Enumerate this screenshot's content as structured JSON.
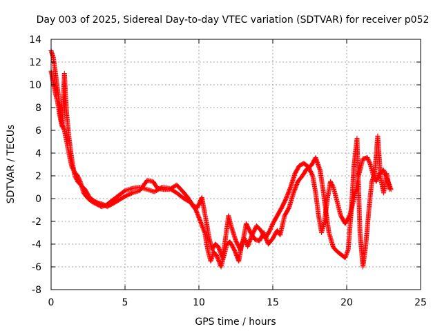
{
  "chart_data": {
    "type": "scatter",
    "title": "Day 003 of 2025, Sidereal Day-to-day VTEC variation (SDTVAR) for receiver p052",
    "xlabel": "GPS time / hours",
    "ylabel": "SDTVAR / TECUs",
    "xlim": [
      0,
      25
    ],
    "ylim": [
      -8,
      14
    ],
    "xticks": [
      0,
      5,
      10,
      15,
      20,
      25
    ],
    "yticks": [
      -8,
      -6,
      -4,
      -2,
      0,
      2,
      4,
      6,
      8,
      10,
      12,
      14
    ],
    "grid": true,
    "marker": "+",
    "color": "#ff0000",
    "series": [
      {
        "name": "SDTVAR",
        "trace_a": [
          [
            0,
            13
          ],
          [
            0.15,
            12.4
          ],
          [
            0.3,
            11
          ],
          [
            0.45,
            9.5
          ],
          [
            0.6,
            8
          ],
          [
            0.75,
            6.5
          ],
          [
            0.9,
            6
          ],
          [
            1.05,
            5
          ],
          [
            1.2,
            4
          ],
          [
            1.4,
            2.8
          ],
          [
            1.6,
            2.3
          ],
          [
            1.8,
            2
          ],
          [
            2,
            1.4
          ],
          [
            2.2,
            0.5
          ],
          [
            2.5,
            0
          ],
          [
            2.8,
            -0.3
          ],
          [
            3.1,
            -0.5
          ],
          [
            3.4,
            -0.7
          ],
          [
            3.7,
            -0.6
          ],
          [
            4,
            -0.3
          ],
          [
            4.3,
            0
          ],
          [
            4.6,
            0.3
          ],
          [
            5,
            0.7
          ],
          [
            5.5,
            0.9
          ],
          [
            6,
            1
          ],
          [
            6.5,
            0.8
          ],
          [
            7,
            0.6
          ],
          [
            7.5,
            1
          ],
          [
            8,
            0.9
          ],
          [
            8.5,
            0.5
          ],
          [
            9,
            0
          ],
          [
            9.4,
            -0.3
          ],
          [
            9.8,
            -1
          ],
          [
            10.1,
            -2
          ],
          [
            10.4,
            -3
          ],
          [
            10.6,
            -4.5
          ],
          [
            10.8,
            -5.5
          ],
          [
            11,
            -4.7
          ],
          [
            11.2,
            -5
          ],
          [
            11.5,
            -6
          ],
          [
            11.7,
            -5
          ],
          [
            11.9,
            -4
          ],
          [
            12.1,
            -3.8
          ],
          [
            12.4,
            -4.5
          ],
          [
            12.7,
            -5.5
          ],
          [
            12.9,
            -4
          ],
          [
            13.1,
            -3.5
          ],
          [
            13.3,
            -4.2
          ],
          [
            13.6,
            -3.2
          ],
          [
            13.9,
            -2.4
          ],
          [
            14.2,
            -2.8
          ],
          [
            14.5,
            -3.5
          ],
          [
            14.8,
            -2.8
          ],
          [
            15,
            -2.2
          ],
          [
            15.3,
            -1.5
          ],
          [
            15.6,
            -0.8
          ],
          [
            15.9,
            0
          ],
          [
            16.2,
            1
          ],
          [
            16.5,
            2.2
          ],
          [
            16.8,
            2.9
          ],
          [
            17.1,
            3.1
          ],
          [
            17.4,
            2.8
          ],
          [
            17.7,
            2
          ],
          [
            17.9,
            0.5
          ],
          [
            18.1,
            -1.5
          ],
          [
            18.3,
            -3
          ],
          [
            18.5,
            -2
          ],
          [
            18.7,
            0
          ],
          [
            18.9,
            1.5
          ],
          [
            19.1,
            1
          ],
          [
            19.3,
            0
          ],
          [
            19.6,
            -1.5
          ],
          [
            19.9,
            -2.2
          ],
          [
            20.2,
            -1.5
          ],
          [
            20.5,
            0
          ],
          [
            20.8,
            2
          ],
          [
            21.1,
            3.5
          ],
          [
            21.4,
            3.6
          ],
          [
            21.6,
            3
          ],
          [
            21.8,
            2
          ],
          [
            22,
            1.5
          ],
          [
            22.2,
            2.2
          ],
          [
            22.5,
            2.5
          ],
          [
            22.8,
            1.5
          ],
          [
            23,
            0.8
          ]
        ],
        "trace_b": [
          [
            0,
            11.2
          ],
          [
            0.15,
            10.2
          ],
          [
            0.3,
            9.2
          ],
          [
            0.45,
            8.4
          ],
          [
            0.6,
            7.2
          ],
          [
            0.75,
            6.3
          ],
          [
            0.9,
            11
          ],
          [
            1.05,
            7.5
          ],
          [
            1.2,
            5.5
          ],
          [
            1.4,
            3.5
          ],
          [
            1.6,
            2
          ],
          [
            1.8,
            1.5
          ],
          [
            2,
            1.2
          ],
          [
            2.3,
            0.8
          ],
          [
            2.6,
            0.1
          ],
          [
            2.9,
            -0.2
          ],
          [
            3.2,
            -0.4
          ],
          [
            3.5,
            -0.5
          ],
          [
            3.8,
            -0.7
          ],
          [
            4.1,
            -0.5
          ],
          [
            4.5,
            -0.2
          ],
          [
            5,
            0.2
          ],
          [
            5.5,
            0.5
          ],
          [
            6,
            0.7
          ],
          [
            6.5,
            1.6
          ],
          [
            6.9,
            1.5
          ],
          [
            7.2,
            0.9
          ],
          [
            7.6,
            0.8
          ],
          [
            8,
            0.8
          ],
          [
            8.5,
            1.2
          ],
          [
            9,
            0.5
          ],
          [
            9.3,
            0
          ],
          [
            9.6,
            -0.6
          ],
          [
            9.9,
            -0.8
          ],
          [
            10.2,
            0.1
          ],
          [
            10.5,
            -2
          ],
          [
            10.7,
            -3.5
          ],
          [
            10.9,
            -4.5
          ],
          [
            11.1,
            -4
          ],
          [
            11.3,
            -4.2
          ],
          [
            11.6,
            -5.2
          ],
          [
            11.8,
            -3.5
          ],
          [
            12,
            -1.5
          ],
          [
            12.2,
            -2.5
          ],
          [
            12.5,
            -3.7
          ],
          [
            12.8,
            -4.5
          ],
          [
            13,
            -3.6
          ],
          [
            13.2,
            -2.2
          ],
          [
            13.5,
            -3
          ],
          [
            13.8,
            -3.6
          ],
          [
            14.1,
            -3.7
          ],
          [
            14.4,
            -3
          ],
          [
            14.7,
            -4
          ],
          [
            15,
            -3.5
          ],
          [
            15.3,
            -2.8
          ],
          [
            15.5,
            -3.2
          ],
          [
            15.8,
            -1.5
          ],
          [
            16.1,
            -0.8
          ],
          [
            16.4,
            0.5
          ],
          [
            16.7,
            1.5
          ],
          [
            17,
            2
          ],
          [
            17.3,
            2.6
          ],
          [
            17.6,
            2.9
          ],
          [
            17.9,
            3.6
          ],
          [
            18.2,
            2.5
          ],
          [
            18.4,
            0.8
          ],
          [
            18.6,
            -1.2
          ],
          [
            18.8,
            -3
          ],
          [
            19.1,
            -4.3
          ],
          [
            19.4,
            -4.7
          ],
          [
            19.7,
            -5
          ],
          [
            19.9,
            -5.2
          ],
          [
            20.1,
            -4.5
          ],
          [
            20.3,
            -1.2
          ],
          [
            20.5,
            3
          ],
          [
            20.7,
            5.3
          ],
          [
            20.9,
            -3
          ],
          [
            21.1,
            -6
          ],
          [
            21.3,
            -4
          ],
          [
            21.5,
            -1
          ],
          [
            21.7,
            1.5
          ],
          [
            21.9,
            2.2
          ],
          [
            22.1,
            5.5
          ],
          [
            22.3,
            1.8
          ],
          [
            22.5,
            0.5
          ],
          [
            22.7,
            2.2
          ],
          [
            22.9,
            0.8
          ]
        ]
      }
    ]
  }
}
